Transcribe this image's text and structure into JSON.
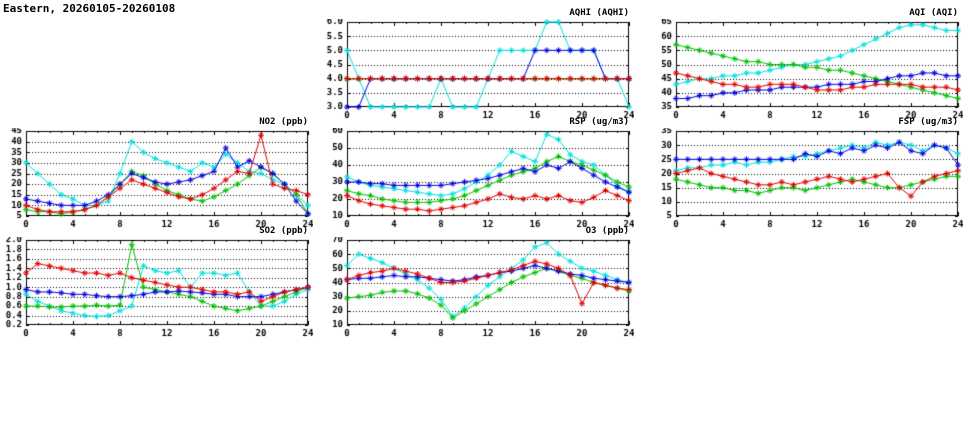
{
  "page": {
    "title": "Eastern, 20260105-20260108"
  },
  "chart_data": [
    {
      "id": "aqhi",
      "type": "line",
      "title": "AQHI (AQHI)",
      "xlim": [
        0,
        24
      ],
      "x_ticks": [
        0,
        4,
        8,
        12,
        16,
        20,
        24
      ],
      "ylim": [
        3.0,
        6.0
      ],
      "y_ticks": [
        3.0,
        3.5,
        4.0,
        4.5,
        5.0,
        5.5,
        6.0
      ],
      "y_decimals": 1,
      "grid": "horizontal-dotted",
      "legend": "none",
      "series": [
        {
          "name": "cyan",
          "color": "#00dede",
          "values": [
            5,
            4,
            3,
            3,
            3,
            3,
            3,
            3,
            4,
            3,
            3,
            3,
            4,
            5,
            5,
            5,
            5,
            6,
            6,
            5,
            5,
            5,
            4,
            4,
            3
          ]
        },
        {
          "name": "green",
          "color": "#00c000",
          "values": [
            4,
            4,
            4,
            4,
            4,
            4,
            4,
            4,
            4,
            4,
            4,
            4,
            4,
            4,
            4,
            4,
            4,
            4,
            4,
            4,
            4,
            4,
            4,
            4,
            4
          ]
        },
        {
          "name": "blue",
          "color": "#0000e0",
          "values": [
            3,
            3,
            4,
            4,
            4,
            4,
            4,
            4,
            4,
            4,
            4,
            4,
            4,
            4,
            4,
            4,
            5,
            5,
            5,
            5,
            5,
            5,
            4,
            4,
            4
          ]
        },
        {
          "name": "red",
          "color": "#e00000",
          "values": [
            4,
            4,
            4,
            4,
            4,
            4,
            4,
            4,
            4,
            4,
            4,
            4,
            4,
            4,
            4,
            4,
            4,
            4,
            4,
            4,
            4,
            4,
            4,
            4,
            4
          ]
        }
      ]
    },
    {
      "id": "aqi",
      "type": "line",
      "title": "AQI (AQI)",
      "xlim": [
        0,
        24
      ],
      "x_ticks": [
        0,
        4,
        8,
        12,
        16,
        20,
        24
      ],
      "ylim": [
        35,
        65
      ],
      "y_ticks": [
        35,
        40,
        45,
        50,
        55,
        60,
        65
      ],
      "y_decimals": 0,
      "grid": "horizontal-dotted",
      "legend": "none",
      "series": [
        {
          "name": "cyan",
          "color": "#00dede",
          "values": [
            43,
            44,
            45,
            45,
            46,
            46,
            47,
            47,
            48,
            49,
            50,
            50,
            51,
            52,
            53,
            55,
            57,
            59,
            61,
            63,
            64,
            64,
            63,
            62,
            62
          ]
        },
        {
          "name": "green",
          "color": "#00c000",
          "values": [
            57,
            56,
            55,
            54,
            53,
            52,
            51,
            51,
            50,
            50,
            50,
            49,
            49,
            48,
            48,
            47,
            46,
            45,
            44,
            43,
            42,
            41,
            40,
            39,
            38
          ]
        },
        {
          "name": "blue",
          "color": "#0000e0",
          "values": [
            38,
            38,
            39,
            39,
            40,
            40,
            41,
            41,
            41,
            42,
            42,
            42,
            42,
            43,
            43,
            43,
            44,
            44,
            45,
            46,
            46,
            47,
            47,
            46,
            46
          ]
        },
        {
          "name": "red",
          "color": "#e00000",
          "values": [
            47,
            46,
            45,
            44,
            43,
            43,
            42,
            42,
            43,
            43,
            43,
            42,
            41,
            41,
            41,
            42,
            42,
            43,
            43,
            43,
            43,
            42,
            42,
            42,
            41
          ]
        }
      ]
    },
    {
      "id": "no2",
      "type": "line",
      "title": "NO2 (ppb)",
      "xlim": [
        0,
        24
      ],
      "x_ticks": [
        0,
        4,
        8,
        12,
        16,
        20,
        24
      ],
      "ylim": [
        5,
        45
      ],
      "y_ticks": [
        5,
        10,
        15,
        20,
        25,
        30,
        35,
        40,
        45
      ],
      "y_decimals": 0,
      "grid": "horizontal-dotted",
      "legend": "none",
      "series": [
        {
          "name": "cyan",
          "color": "#00dede",
          "values": [
            30,
            25,
            20,
            15,
            13,
            10,
            10,
            12,
            25,
            40,
            35,
            32,
            30,
            28,
            26,
            30,
            28,
            34,
            30,
            26,
            25,
            22,
            20,
            15,
            10
          ]
        },
        {
          "name": "green",
          "color": "#00c000",
          "values": [
            8,
            7,
            7,
            6,
            7,
            8,
            10,
            14,
            20,
            26,
            24,
            20,
            17,
            15,
            13,
            12,
            14,
            17,
            20,
            24,
            28,
            25,
            20,
            15,
            6
          ]
        },
        {
          "name": "blue",
          "color": "#0000e0",
          "values": [
            13,
            12,
            11,
            10,
            10,
            10,
            12,
            15,
            20,
            25,
            23,
            21,
            20,
            21,
            22,
            24,
            26,
            37,
            28,
            31,
            28,
            25,
            20,
            12,
            6
          ]
        },
        {
          "name": "red",
          "color": "#e00000",
          "values": [
            10,
            8,
            7,
            7,
            7,
            8,
            10,
            14,
            18,
            22,
            20,
            18,
            16,
            14,
            13,
            15,
            18,
            22,
            26,
            25,
            43,
            20,
            18,
            17,
            15
          ]
        }
      ]
    },
    {
      "id": "rsp",
      "type": "line",
      "title": "RSP (ug/m3)",
      "xlim": [
        0,
        24
      ],
      "x_ticks": [
        0,
        4,
        8,
        12,
        16,
        20,
        24
      ],
      "ylim": [
        10,
        60
      ],
      "y_ticks": [
        10,
        20,
        30,
        40,
        50,
        60
      ],
      "y_decimals": 0,
      "grid": "horizontal-dotted",
      "legend": "none",
      "series": [
        {
          "name": "cyan",
          "color": "#00dede",
          "values": [
            33,
            30,
            28,
            27,
            26,
            25,
            24,
            23,
            22,
            23,
            26,
            30,
            34,
            40,
            48,
            45,
            42,
            58,
            55,
            46,
            42,
            40,
            34,
            28,
            24
          ]
        },
        {
          "name": "green",
          "color": "#00c000",
          "values": [
            25,
            23,
            22,
            20,
            19,
            18,
            18,
            18,
            19,
            20,
            22,
            25,
            28,
            31,
            34,
            36,
            38,
            42,
            45,
            42,
            40,
            37,
            34,
            30,
            27
          ]
        },
        {
          "name": "blue",
          "color": "#0000e0",
          "values": [
            30,
            30,
            29,
            29,
            28,
            28,
            28,
            28,
            28,
            29,
            30,
            31,
            32,
            34,
            36,
            38,
            36,
            40,
            38,
            42,
            38,
            34,
            30,
            27,
            24
          ]
        },
        {
          "name": "red",
          "color": "#e00000",
          "values": [
            22,
            19,
            17,
            16,
            15,
            14,
            14,
            13,
            14,
            15,
            16,
            18,
            20,
            23,
            21,
            20,
            22,
            20,
            22,
            19,
            18,
            21,
            25,
            22,
            19
          ]
        }
      ]
    },
    {
      "id": "fsp",
      "type": "line",
      "title": "FSP (ug/m3)",
      "xlim": [
        0,
        24
      ],
      "x_ticks": [
        0,
        4,
        8,
        12,
        16,
        20,
        24
      ],
      "ylim": [
        5,
        35
      ],
      "y_ticks": [
        5,
        10,
        15,
        20,
        25,
        30,
        35
      ],
      "y_decimals": 0,
      "grid": "horizontal-dotted",
      "legend": "none",
      "series": [
        {
          "name": "cyan",
          "color": "#00dede",
          "values": [
            21,
            22,
            22,
            23,
            23,
            24,
            23,
            24,
            24,
            25,
            26,
            26,
            27,
            28,
            29,
            30,
            29,
            31,
            30,
            31,
            30,
            28,
            30,
            29,
            27
          ]
        },
        {
          "name": "green",
          "color": "#00c000",
          "values": [
            18,
            17,
            16,
            15,
            15,
            14,
            14,
            13,
            14,
            15,
            15,
            14,
            15,
            16,
            17,
            18,
            17,
            16,
            15,
            15,
            16,
            17,
            18,
            19,
            19
          ]
        },
        {
          "name": "blue",
          "color": "#0000e0",
          "values": [
            25,
            25,
            25,
            25,
            25,
            25,
            25,
            25,
            25,
            25,
            25,
            27,
            26,
            28,
            27,
            29,
            28,
            30,
            29,
            31,
            28,
            27,
            30,
            29,
            23
          ]
        },
        {
          "name": "red",
          "color": "#e00000",
          "values": [
            20,
            21,
            22,
            20,
            19,
            18,
            17,
            16,
            16,
            17,
            16,
            17,
            18,
            19,
            18,
            17,
            18,
            19,
            20,
            15,
            12,
            17,
            19,
            20,
            21
          ]
        }
      ]
    },
    {
      "id": "so2",
      "type": "line",
      "title": "SO2 (ppb)",
      "xlim": [
        0,
        24
      ],
      "x_ticks": [
        0,
        4,
        8,
        12,
        16,
        20,
        24
      ],
      "ylim": [
        0.2,
        2.0
      ],
      "y_ticks": [
        0.2,
        0.4,
        0.6,
        0.8,
        1.0,
        1.2,
        1.4,
        1.6,
        1.8,
        2.0
      ],
      "y_decimals": 1,
      "grid": "horizontal-dotted",
      "legend": "none",
      "series": [
        {
          "name": "cyan",
          "color": "#00dede",
          "values": [
            0.85,
            0.7,
            0.6,
            0.5,
            0.45,
            0.4,
            0.38,
            0.4,
            0.5,
            0.6,
            1.45,
            1.35,
            1.3,
            1.35,
            1.0,
            1.3,
            1.3,
            1.25,
            1.3,
            0.9,
            0.6,
            0.6,
            0.7,
            0.85,
            0.95
          ]
        },
        {
          "name": "green",
          "color": "#00c000",
          "values": [
            0.6,
            0.6,
            0.58,
            0.58,
            0.6,
            0.6,
            0.62,
            0.6,
            0.62,
            1.9,
            1.0,
            0.95,
            0.9,
            0.85,
            0.8,
            0.7,
            0.6,
            0.55,
            0.5,
            0.55,
            0.6,
            0.7,
            0.8,
            0.9,
            1.0
          ]
        },
        {
          "name": "blue",
          "color": "#0000e0",
          "values": [
            0.95,
            0.9,
            0.9,
            0.88,
            0.85,
            0.85,
            0.82,
            0.8,
            0.8,
            0.82,
            0.85,
            0.9,
            0.9,
            0.92,
            0.9,
            0.88,
            0.85,
            0.85,
            0.8,
            0.8,
            0.8,
            0.85,
            0.9,
            0.95,
            1.0
          ]
        },
        {
          "name": "red",
          "color": "#e00000",
          "values": [
            1.3,
            1.5,
            1.45,
            1.4,
            1.35,
            1.3,
            1.3,
            1.25,
            1.3,
            1.2,
            1.15,
            1.1,
            1.05,
            1.0,
            1.0,
            0.95,
            0.9,
            0.9,
            0.85,
            0.9,
            0.7,
            0.8,
            0.9,
            0.95,
            1.0
          ]
        }
      ]
    },
    {
      "id": "o3",
      "type": "line",
      "title": "O3 (ppb)",
      "xlim": [
        0,
        24
      ],
      "x_ticks": [
        0,
        4,
        8,
        12,
        16,
        20,
        24
      ],
      "ylim": [
        10,
        70
      ],
      "y_ticks": [
        10,
        20,
        30,
        40,
        50,
        60,
        70
      ],
      "y_decimals": 0,
      "grid": "horizontal-dotted",
      "legend": "none",
      "series": [
        {
          "name": "cyan",
          "color": "#00dede",
          "values": [
            52,
            60,
            57,
            54,
            50,
            46,
            42,
            36,
            28,
            16,
            22,
            30,
            38,
            44,
            50,
            56,
            65,
            68,
            60,
            55,
            50,
            48,
            45,
            42,
            40
          ]
        },
        {
          "name": "green",
          "color": "#00c000",
          "values": [
            29,
            30,
            31,
            33,
            34,
            34,
            32,
            29,
            24,
            15,
            20,
            25,
            30,
            35,
            40,
            44,
            47,
            50,
            48,
            45,
            43,
            40,
            38,
            36,
            34
          ]
        },
        {
          "name": "blue",
          "color": "#0000e0",
          "values": [
            42,
            43,
            43,
            44,
            45,
            44,
            44,
            43,
            42,
            41,
            42,
            44,
            45,
            47,
            48,
            50,
            52,
            50,
            48,
            46,
            45,
            43,
            42,
            41,
            40
          ]
        },
        {
          "name": "red",
          "color": "#e00000",
          "values": [
            42,
            45,
            47,
            48,
            50,
            48,
            46,
            43,
            40,
            40,
            41,
            43,
            45,
            47,
            49,
            52,
            55,
            53,
            50,
            45,
            25,
            40,
            38,
            36,
            35
          ]
        }
      ]
    }
  ]
}
